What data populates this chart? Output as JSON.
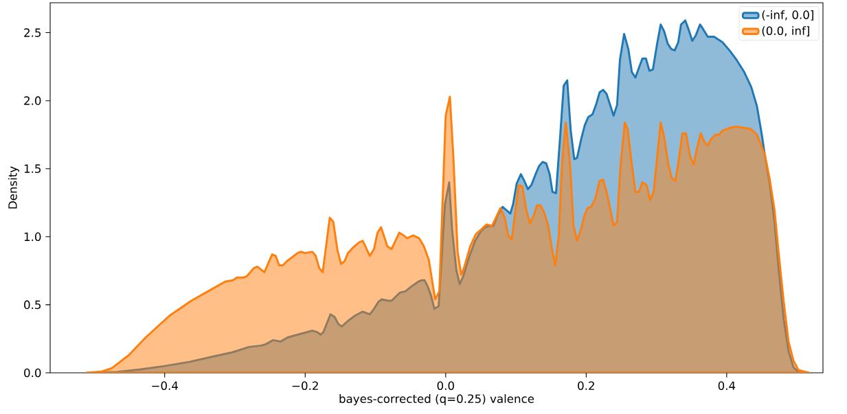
{
  "chart_data": {
    "type": "area",
    "xlabel": "bayes-corrected (q=0.25) valence",
    "ylabel": "Density",
    "xlim": [
      -0.563,
      0.537
    ],
    "ylim": [
      0,
      2.72
    ],
    "xticks": [
      {
        "value": -0.4,
        "label": "−0.4"
      },
      {
        "value": -0.2,
        "label": "−0.2"
      },
      {
        "value": 0,
        "label": "0.0"
      },
      {
        "value": 0.2,
        "label": "0.2"
      },
      {
        "value": 0.4,
        "label": "0.4"
      }
    ],
    "yticks": [
      {
        "value": 0,
        "label": "0.0"
      },
      {
        "value": 0.5,
        "label": "0.5"
      },
      {
        "value": 1,
        "label": "1.0"
      },
      {
        "value": 1.5,
        "label": "1.5"
      },
      {
        "value": 2,
        "label": "2.0"
      },
      {
        "value": 2.5,
        "label": "2.5"
      }
    ],
    "grid": false,
    "legend": "top right",
    "series": [
      {
        "name": "(-inf, 0.0]",
        "color": "#1f77b4",
        "x": [
          -0.511,
          -0.468,
          -0.434,
          -0.4,
          -0.365,
          -0.331,
          -0.304,
          -0.28,
          -0.263,
          -0.256,
          -0.246,
          -0.235,
          -0.225,
          -0.211,
          -0.19,
          -0.183,
          -0.178,
          -0.174,
          -0.164,
          -0.158,
          -0.153,
          -0.148,
          -0.137,
          -0.129,
          -0.118,
          -0.108,
          -0.102,
          -0.096,
          -0.091,
          -0.082,
          -0.077,
          -0.065,
          -0.057,
          -0.05,
          -0.039,
          -0.034,
          -0.03,
          -0.026,
          -0.021,
          -0.016,
          -0.01,
          -0.001,
          0.005,
          0.009,
          0.015,
          0.02,
          0.025,
          0.034,
          0.042,
          0.05,
          0.056,
          0.063,
          0.068,
          0.074,
          0.081,
          0.092,
          0.096,
          0.101,
          0.107,
          0.112,
          0.117,
          0.122,
          0.128,
          0.133,
          0.138,
          0.143,
          0.148,
          0.152,
          0.157,
          0.162,
          0.168,
          0.173,
          0.178,
          0.183,
          0.187,
          0.193,
          0.198,
          0.203,
          0.209,
          0.214,
          0.219,
          0.224,
          0.229,
          0.234,
          0.239,
          0.244,
          0.248,
          0.254,
          0.26,
          0.265,
          0.27,
          0.275,
          0.28,
          0.285,
          0.29,
          0.295,
          0.301,
          0.306,
          0.311,
          0.316,
          0.321,
          0.326,
          0.331,
          0.335,
          0.341,
          0.346,
          0.351,
          0.356,
          0.362,
          0.366,
          0.373,
          0.382,
          0.394,
          0.404,
          0.414,
          0.425,
          0.435,
          0.443,
          0.45,
          0.454,
          0.461,
          0.468,
          0.474,
          0.481,
          0.488,
          0.495,
          0.502,
          0.517
        ],
        "values": [
          0,
          0.006,
          0.025,
          0.05,
          0.08,
          0.12,
          0.15,
          0.19,
          0.2,
          0.21,
          0.24,
          0.23,
          0.26,
          0.28,
          0.31,
          0.3,
          0.28,
          0.3,
          0.43,
          0.41,
          0.36,
          0.34,
          0.39,
          0.42,
          0.45,
          0.43,
          0.47,
          0.52,
          0.54,
          0.53,
          0.53,
          0.59,
          0.6,
          0.63,
          0.67,
          0.68,
          0.68,
          0.64,
          0.57,
          0.47,
          0.49,
          1.24,
          1.4,
          1.06,
          0.76,
          0.65,
          0.71,
          0.86,
          0.97,
          1.04,
          1.07,
          1.08,
          1.08,
          1.16,
          1.22,
          1.17,
          1.24,
          1.39,
          1.46,
          1.41,
          1.35,
          1.38,
          1.46,
          1.52,
          1.55,
          1.54,
          1.46,
          1.33,
          1.32,
          1.67,
          2.11,
          2.15,
          1.78,
          1.57,
          1.58,
          1.72,
          1.82,
          1.88,
          1.9,
          1.97,
          2.06,
          2.08,
          2.05,
          1.97,
          1.89,
          1.97,
          2.3,
          2.49,
          2.38,
          2.21,
          2.17,
          2.24,
          2.31,
          2.31,
          2.22,
          2.23,
          2.42,
          2.56,
          2.51,
          2.42,
          2.38,
          2.37,
          2.43,
          2.56,
          2.59,
          2.52,
          2.44,
          2.48,
          2.56,
          2.53,
          2.47,
          2.47,
          2.43,
          2.37,
          2.3,
          2.21,
          2.1,
          1.96,
          1.75,
          1.61,
          1.4,
          1.11,
          0.76,
          0.4,
          0.16,
          0.04,
          0.005,
          0
        ]
      },
      {
        "name": "(0.0, inf]",
        "color": "#ff7f0e",
        "x": [
          -0.511,
          -0.489,
          -0.475,
          -0.451,
          -0.427,
          -0.393,
          -0.362,
          -0.331,
          -0.314,
          -0.303,
          -0.297,
          -0.288,
          -0.283,
          -0.273,
          -0.268,
          -0.258,
          -0.247,
          -0.242,
          -0.237,
          -0.232,
          -0.226,
          -0.216,
          -0.211,
          -0.206,
          -0.2,
          -0.19,
          -0.185,
          -0.18,
          -0.175,
          -0.165,
          -0.16,
          -0.154,
          -0.149,
          -0.144,
          -0.139,
          -0.132,
          -0.123,
          -0.118,
          -0.108,
          -0.102,
          -0.097,
          -0.092,
          -0.083,
          -0.077,
          -0.066,
          -0.06,
          -0.055,
          -0.046,
          -0.038,
          -0.031,
          -0.024,
          -0.015,
          -0.009,
          0,
          0.006,
          0.011,
          0.017,
          0.022,
          0.026,
          0.035,
          0.043,
          0.05,
          0.058,
          0.066,
          0.078,
          0.084,
          0.089,
          0.094,
          0.104,
          0.109,
          0.115,
          0.12,
          0.125,
          0.13,
          0.135,
          0.14,
          0.146,
          0.151,
          0.156,
          0.161,
          0.166,
          0.171,
          0.177,
          0.182,
          0.187,
          0.193,
          0.197,
          0.202,
          0.207,
          0.213,
          0.219,
          0.224,
          0.229,
          0.234,
          0.239,
          0.244,
          0.249,
          0.255,
          0.259,
          0.265,
          0.27,
          0.275,
          0.28,
          0.286,
          0.291,
          0.296,
          0.306,
          0.311,
          0.317,
          0.322,
          0.327,
          0.331,
          0.337,
          0.342,
          0.348,
          0.353,
          0.358,
          0.363,
          0.368,
          0.373,
          0.378,
          0.384,
          0.389,
          0.394,
          0.404,
          0.414,
          0.425,
          0.435,
          0.443,
          0.454,
          0.461,
          0.468,
          0.474,
          0.481,
          0.488,
          0.495,
          0.502,
          0.517
        ],
        "values": [
          0,
          0.01,
          0.035,
          0.13,
          0.26,
          0.42,
          0.53,
          0.62,
          0.67,
          0.68,
          0.7,
          0.7,
          0.71,
          0.77,
          0.78,
          0.74,
          0.87,
          0.86,
          0.79,
          0.79,
          0.82,
          0.86,
          0.88,
          0.89,
          0.88,
          0.89,
          0.86,
          0.77,
          0.74,
          1.14,
          1.11,
          0.9,
          0.8,
          0.82,
          0.88,
          0.92,
          0.96,
          0.97,
          0.86,
          0.91,
          1.03,
          1.07,
          0.93,
          0.91,
          1.03,
          1.01,
          0.99,
          1.01,
          0.99,
          0.93,
          0.83,
          0.54,
          0.6,
          1.89,
          2.03,
          1.58,
          0.89,
          0.72,
          0.77,
          0.93,
          1.02,
          1.05,
          1.09,
          1.08,
          1.21,
          1.14,
          1.01,
          0.98,
          1.38,
          1.37,
          1.19,
          1.1,
          1.15,
          1.23,
          1.23,
          1.18,
          1.08,
          0.92,
          0.79,
          1.01,
          1.57,
          1.84,
          1.53,
          1.08,
          0.97,
          1.06,
          1.15,
          1.21,
          1.22,
          1.28,
          1.41,
          1.42,
          1.33,
          1.21,
          1.08,
          1.11,
          1.53,
          1.84,
          1.79,
          1.53,
          1.33,
          1.33,
          1.4,
          1.38,
          1.27,
          1.33,
          1.84,
          1.73,
          1.53,
          1.43,
          1.41,
          1.54,
          1.76,
          1.76,
          1.59,
          1.53,
          1.66,
          1.76,
          1.7,
          1.67,
          1.72,
          1.75,
          1.75,
          1.78,
          1.8,
          1.81,
          1.8,
          1.79,
          1.75,
          1.61,
          1.43,
          1.2,
          0.88,
          0.53,
          0.23,
          0.09,
          0.02,
          0
        ]
      }
    ]
  }
}
